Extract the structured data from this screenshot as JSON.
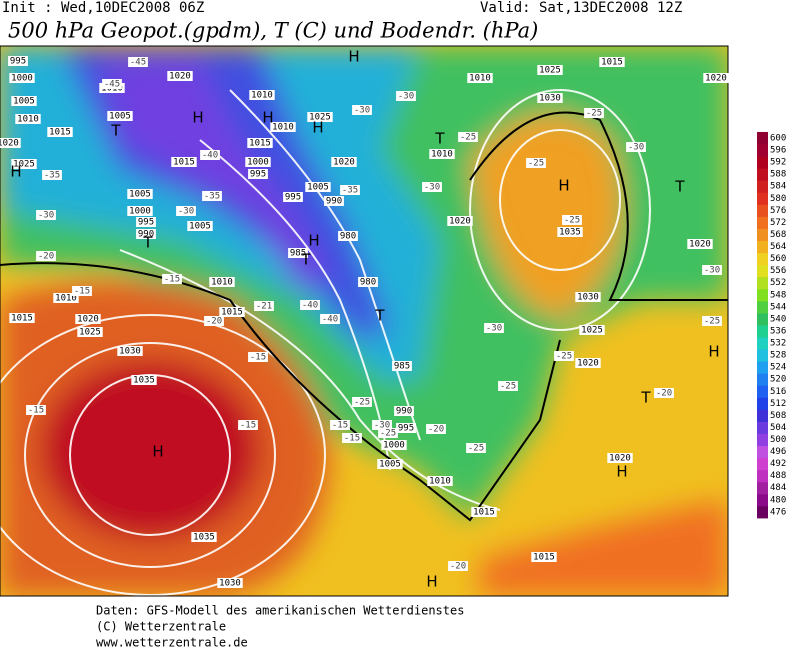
{
  "header": {
    "init": "Init : Wed,10DEC2008 06Z",
    "valid": "Valid: Sat,13DEC2008 12Z",
    "title": "500 hPa Geopot.(gpdm), T (C) und Bodendr. (hPa)"
  },
  "footer": [
    "Daten: GFS-Modell des amerikanischen Wetterdienstes",
    "(C) Wetterzentrale",
    "www.wetterzentrale.de"
  ],
  "colorbar": {
    "labels": [
      476,
      480,
      484,
      488,
      492,
      496,
      500,
      504,
      508,
      512,
      516,
      520,
      524,
      528,
      532,
      536,
      540,
      544,
      548,
      552,
      556,
      560,
      564,
      568,
      572,
      576,
      580,
      584,
      588,
      592,
      596,
      600
    ],
    "colors": [
      "#6a0060",
      "#8a0a8a",
      "#a020a0",
      "#c030c0",
      "#d040d0",
      "#c050e0",
      "#9040e0",
      "#6a3ce0",
      "#4030d8",
      "#2040e8",
      "#2060f0",
      "#2080f0",
      "#20a0f0",
      "#20c0e0",
      "#20d0c0",
      "#20d090",
      "#30c060",
      "#50d040",
      "#80e020",
      "#b0e020",
      "#e0e020",
      "#f0d020",
      "#f0b020",
      "#f09020",
      "#f07020",
      "#e85020",
      "#e03020",
      "#d02020",
      "#c01020",
      "#b00020",
      "#a00030",
      "#900030"
    ]
  },
  "pressure_labels": [
    "995",
    "1000",
    "1005",
    "1010",
    "1015",
    "1020",
    "1025",
    "1010",
    "1020",
    "1005",
    "1010",
    "1010",
    "1015",
    "1015",
    "1000",
    "995",
    "1005",
    "995",
    "990",
    "1005",
    "1000",
    "995",
    "990",
    "1005",
    "1025",
    "1020",
    "1010",
    "1020",
    "980",
    "985",
    "980",
    "1010",
    "1015",
    "1010",
    "1015",
    "1020",
    "1025",
    "1030",
    "1035",
    "1035",
    "1030",
    "985",
    "990",
    "995",
    "1000",
    "1005",
    "1010",
    "1015",
    "1015",
    "1010",
    "1025",
    "1030",
    "1035",
    "1030",
    "1025",
    "1020",
    "1020",
    "1020",
    "1015",
    "1020"
  ],
  "temperature_labels": [
    "-45",
    "-45",
    "-40",
    "-35",
    "-30",
    "-35",
    "-30",
    "-20",
    "-15",
    "-15",
    "-20",
    "-21",
    "-15",
    "-15",
    "-15",
    "-30",
    "-30",
    "-25",
    "-30",
    "-35",
    "-40",
    "-40",
    "-25",
    "-15",
    "-15",
    "-30",
    "-25",
    "-20",
    "-25",
    "-30",
    "-25",
    "-25",
    "-20",
    "-25",
    "-30",
    "-25",
    "-25",
    "-30",
    "-25",
    "-20"
  ],
  "centers": [
    "H",
    "H",
    "H",
    "T",
    "T",
    "T",
    "H",
    "T",
    "H",
    "T",
    "H",
    "T",
    "H",
    "T",
    "H",
    "H",
    "H",
    "H"
  ]
}
